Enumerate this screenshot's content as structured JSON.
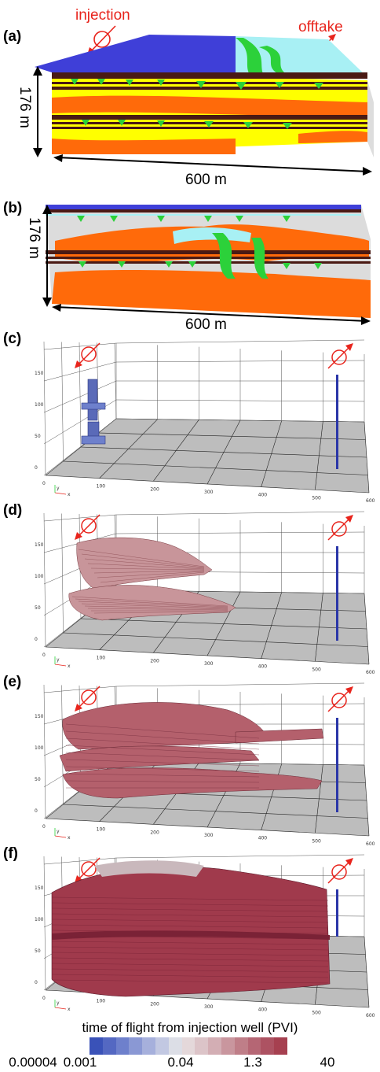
{
  "panels": {
    "a": {
      "label": "(a)",
      "injection": "injection",
      "offtake": "offtake",
      "height_dim": "176 m",
      "width_dim": "600 m"
    },
    "b": {
      "label": "(b)",
      "height_dim": "176 m",
      "width_dim": "600 m"
    },
    "c": {
      "label": "(c)"
    },
    "d": {
      "label": "(d)"
    },
    "e": {
      "label": "(e)"
    },
    "f": {
      "label": "(f)"
    }
  },
  "axis_ticks": {
    "z": [
      "0",
      "50",
      "100",
      "150"
    ],
    "x": [
      "0",
      "100",
      "200",
      "300",
      "400",
      "500",
      "600"
    ],
    "axis_y": "y",
    "axis_x": "x"
  },
  "legend": {
    "title": "time of flight from injection well (PVI)",
    "ticks": [
      "0.00004",
      "0.001",
      "0.04",
      "1.3",
      "40"
    ],
    "colors": [
      "#3a52b8",
      "#5468c2",
      "#6e80cc",
      "#8a98d4",
      "#a6b0dc",
      "#c2c8e2",
      "#dcdee6",
      "#e4d8da",
      "#dcc4c8",
      "#d3aeb4",
      "#c9969e",
      "#bf7e88",
      "#b56674",
      "#ad5262",
      "#a64050"
    ]
  },
  "colors": {
    "blue": "#3f3fd8",
    "cyan": "#a8f0f4",
    "yellow": "#ffff00",
    "orange": "#ff6a0a",
    "green": "#2cd13a",
    "shale": "#4a1a14",
    "red": "#e8241c",
    "grey_floor": "#bdbdbd",
    "pink_light": "#c8959a",
    "pink_mid": "#b4606c",
    "pink_dark": "#a03a4c"
  }
}
